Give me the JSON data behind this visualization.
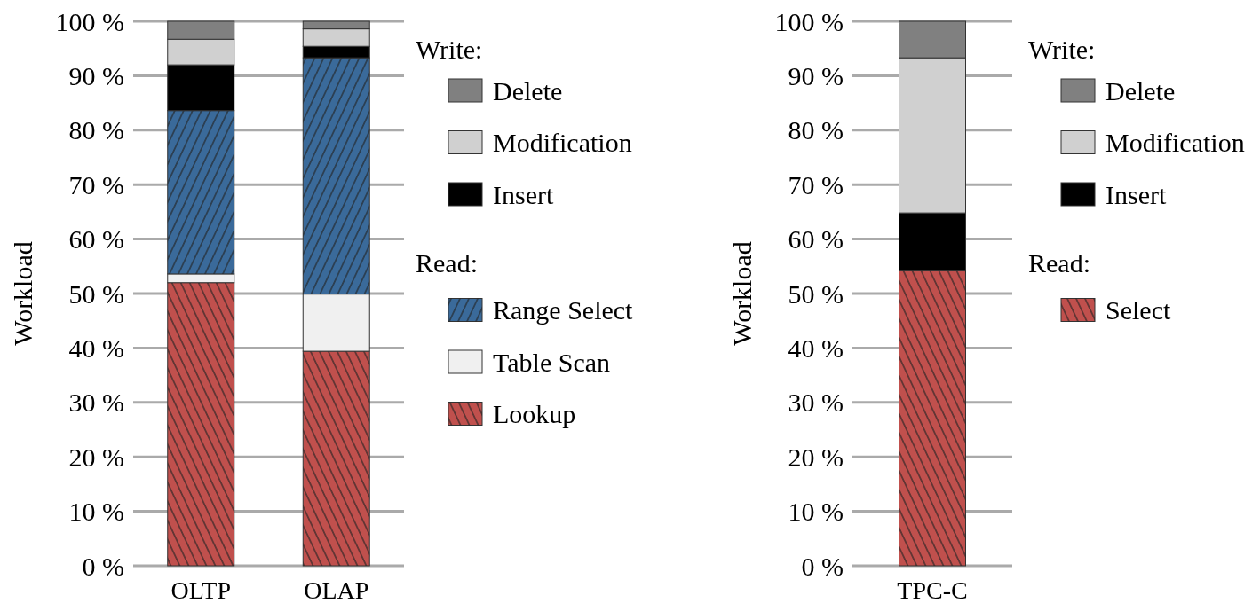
{
  "chart_data": [
    {
      "type": "bar",
      "stacked": true,
      "ylabel": "Workload",
      "categories": [
        "OLTP",
        "OLAP"
      ],
      "ylim": [
        0,
        100
      ],
      "yticks": [
        {
          "value": 0,
          "label": "0 %"
        },
        {
          "value": 10,
          "label": "10 %"
        },
        {
          "value": 20,
          "label": "20 %"
        },
        {
          "value": 30,
          "label": "30 %"
        },
        {
          "value": 40,
          "label": "40 %"
        },
        {
          "value": 50,
          "label": "50 %"
        },
        {
          "value": 60,
          "label": "60 %"
        },
        {
          "value": 70,
          "label": "70 %"
        },
        {
          "value": 80,
          "label": "80 %"
        },
        {
          "value": 90,
          "label": "90 %"
        },
        {
          "value": 100,
          "label": "100 %"
        }
      ],
      "grid": "y",
      "legend": "right",
      "annotations": [
        "Write:",
        "Read:"
      ],
      "series": [
        {
          "name": "Lookup",
          "color": "#c0504d",
          "values": [
            52,
            39.4
          ]
        },
        {
          "name": "Table Scan",
          "color": "#f0f0f0",
          "values": [
            1.6,
            10.5
          ]
        },
        {
          "name": "Range Select",
          "color": "#3a6a9a",
          "values": [
            30,
            43.4
          ]
        },
        {
          "name": "Insert",
          "color": "#000000",
          "values": [
            8.4,
            2.1
          ]
        },
        {
          "name": "Modification",
          "color": "#d0d0d0",
          "values": [
            4.7,
            3.2
          ]
        },
        {
          "name": "Delete",
          "color": "#808080",
          "values": [
            3.3,
            1.4
          ]
        }
      ]
    },
    {
      "type": "bar",
      "stacked": true,
      "ylabel": "Workload",
      "categories": [
        "TPC-C"
      ],
      "ylim": [
        0,
        100
      ],
      "yticks": [
        {
          "value": 0,
          "label": "0 %"
        },
        {
          "value": 10,
          "label": "10 %"
        },
        {
          "value": 20,
          "label": "20 %"
        },
        {
          "value": 30,
          "label": "30 %"
        },
        {
          "value": 40,
          "label": "40 %"
        },
        {
          "value": 50,
          "label": "50 %"
        },
        {
          "value": 60,
          "label": "60 %"
        },
        {
          "value": 70,
          "label": "70 %"
        },
        {
          "value": 80,
          "label": "80 %"
        },
        {
          "value": 90,
          "label": "90 %"
        },
        {
          "value": 100,
          "label": "100 %"
        }
      ],
      "grid": "y",
      "legend": "right",
      "annotations": [
        "Write:",
        "Read:"
      ],
      "series": [
        {
          "name": "Select",
          "color": "#c0504d",
          "values": [
            54.2
          ]
        },
        {
          "name": "Insert",
          "color": "#000000",
          "values": [
            10.6
          ]
        },
        {
          "name": "Modification",
          "color": "#d0d0d0",
          "values": [
            28.5
          ]
        },
        {
          "name": "Delete",
          "color": "#808080",
          "values": [
            6.7
          ]
        }
      ]
    }
  ]
}
